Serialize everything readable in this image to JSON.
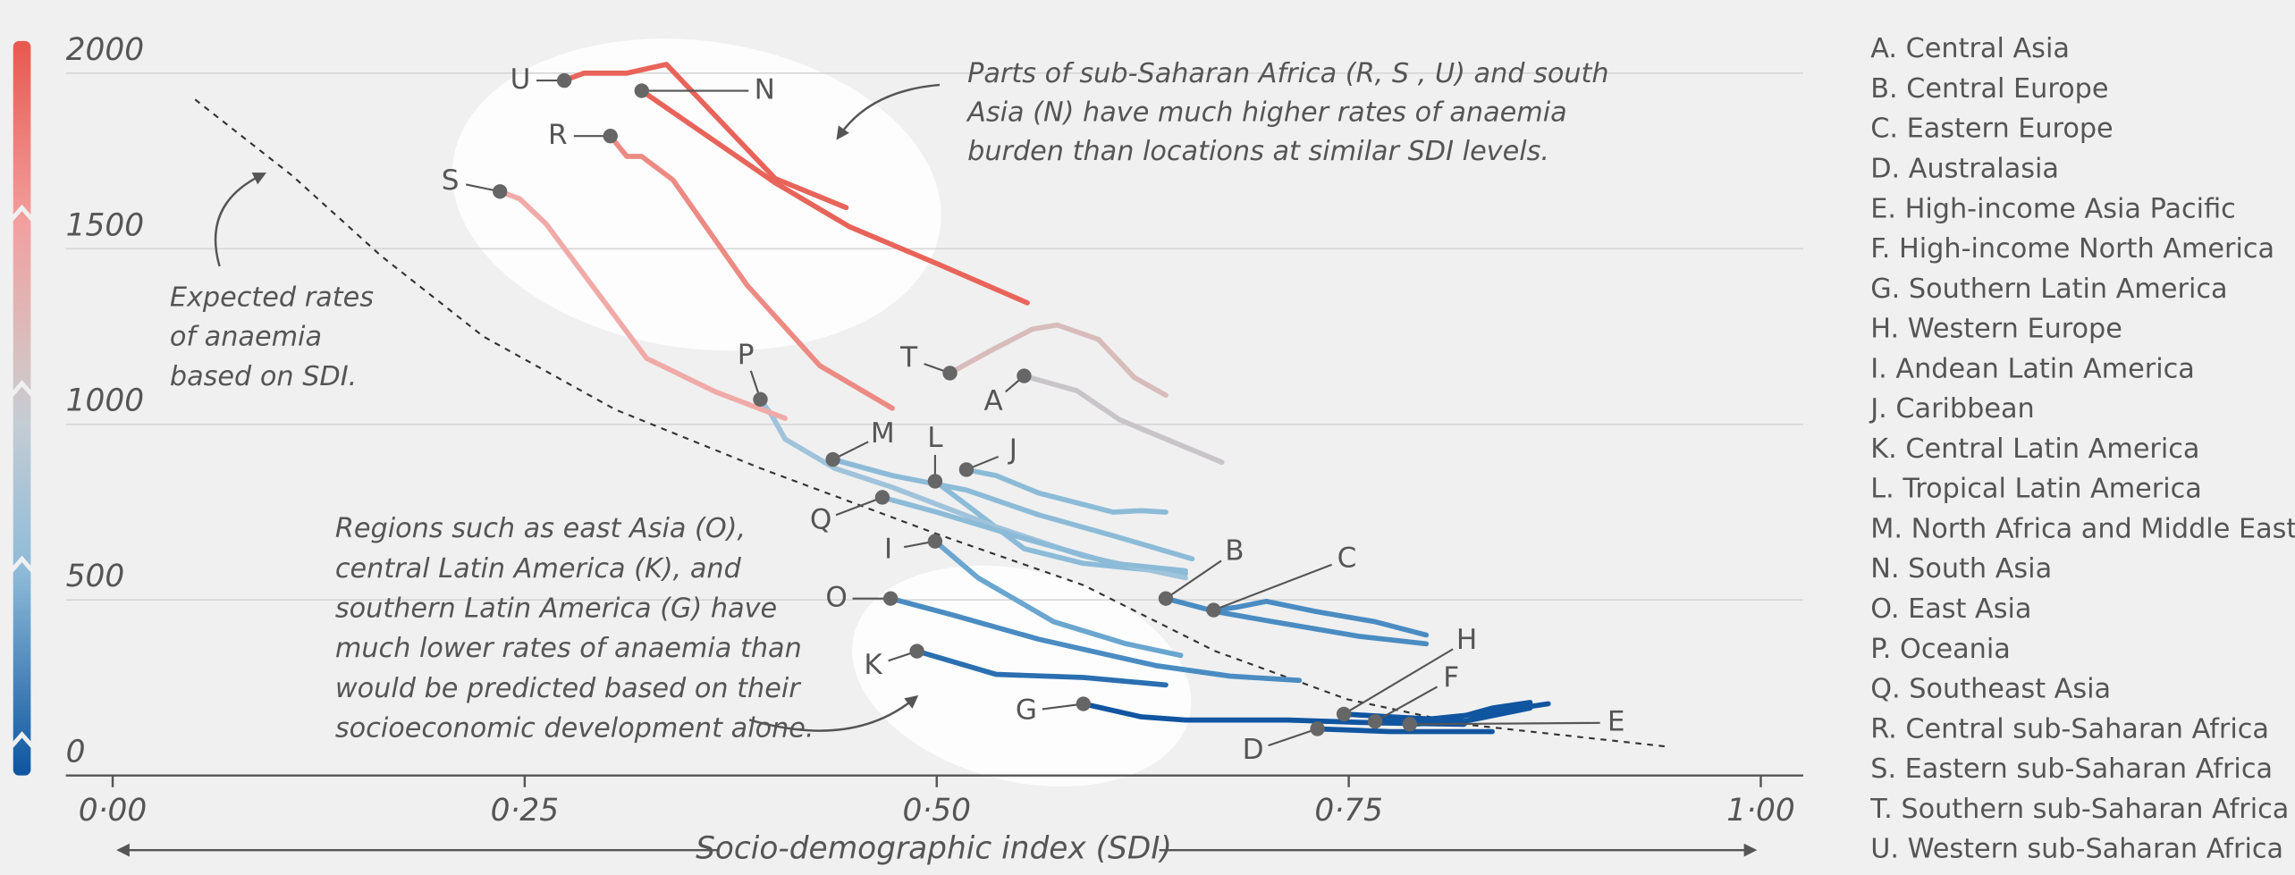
{
  "chart_data": {
    "type": "line",
    "x_label": "Socio-demographic index (SDI)",
    "xlim": [
      -0.03,
      1.03
    ],
    "ylim": [
      0,
      2000
    ],
    "xticks": [
      {
        "value": 0,
        "label": "0·00"
      },
      {
        "value": 0.25,
        "label": "0·25"
      },
      {
        "value": 0.5,
        "label": "0·50"
      },
      {
        "value": 0.75,
        "label": "0·75"
      },
      {
        "value": 1,
        "label": "1·00"
      }
    ],
    "yticks": [
      0,
      500,
      1000,
      1500,
      2000
    ],
    "grid": true,
    "expected": {
      "label": [
        "Expected rates",
        "of anaemia",
        "based on SDI."
      ],
      "x": [
        0.05,
        0.109,
        0.163,
        0.225,
        0.305,
        0.393,
        0.5,
        0.589,
        0.669,
        0.749,
        0.82,
        0.942
      ],
      "values": [
        1925,
        1708,
        1479,
        1250,
        1042,
        875,
        688,
        542,
        354,
        217,
        146,
        83
      ]
    },
    "annotations": [
      {
        "lines": [
          "Parts of sub-Saharan Africa (R, S , U) and south",
          "Asia (N) have much higher rates of anaemia",
          "burden than locations at similar SDI levels."
        ]
      },
      {
        "lines": [
          "Regions such as east Asia (O),",
          "central Latin America (K), and",
          "southern Latin America (G) have",
          "much lower rates of anaemia than",
          "would be predicted based on their",
          "socioeconomic development alone."
        ]
      }
    ],
    "series": [
      {
        "letter": "A",
        "name": "A.  Central Asia",
        "color": "#c9c4c8",
        "x": [
          0.553,
          0.585,
          0.611,
          0.673
        ],
        "values": [
          1138,
          1096,
          1013,
          892
        ]
      },
      {
        "letter": "B",
        "name": "B.  Central Europe",
        "color": "#4a8cc2",
        "x": [
          0.639,
          0.669,
          0.704,
          0.757,
          0.797
        ],
        "values": [
          504,
          467,
          438,
          396,
          375
        ]
      },
      {
        "letter": "C",
        "name": "C.  Eastern Europe",
        "color": "#4a8cc2",
        "x": [
          0.668,
          0.682,
          0.7,
          0.73,
          0.766,
          0.797
        ],
        "values": [
          471,
          479,
          496,
          467,
          438,
          400
        ]
      },
      {
        "letter": "D",
        "name": "D.  Australasia",
        "color": "#1055a0",
        "x": [
          0.731,
          0.775,
          0.837
        ],
        "values": [
          133,
          125,
          125
        ]
      },
      {
        "letter": "E",
        "name": "E.  High-income Asia Pacific",
        "color": "#1055a0",
        "x": [
          0.787,
          0.82,
          0.86
        ],
        "values": [
          146,
          154,
          192
        ]
      },
      {
        "letter": "F",
        "name": "F.  High-income North America",
        "color": "#1055a0",
        "x": [
          0.766,
          0.793,
          0.829,
          0.871
        ],
        "values": [
          154,
          158,
          175,
          204
        ]
      },
      {
        "letter": "G",
        "name": "G.  Southern Latin America",
        "color": "#1055a0",
        "x": [
          0.589,
          0.624,
          0.651,
          0.713,
          0.766,
          0.82
        ],
        "values": [
          204,
          167,
          158,
          158,
          150,
          146
        ]
      },
      {
        "letter": "H",
        "name": "H.  Western Europe",
        "color": "#1055a0",
        "x": [
          0.747,
          0.775,
          0.811,
          0.837,
          0.86
        ],
        "values": [
          175,
          167,
          158,
          192,
          208
        ]
      },
      {
        "letter": "I",
        "name": "I.   Andean Latin America",
        "color": "#6aa6cf",
        "x": [
          0.499,
          0.525,
          0.571,
          0.615,
          0.648
        ],
        "values": [
          667,
          563,
          438,
          375,
          342
        ]
      },
      {
        "letter": "J",
        "name": "J.   Caribbean",
        "color": "#8cbbd8",
        "x": [
          0.518,
          0.536,
          0.562,
          0.607,
          0.624,
          0.639
        ],
        "values": [
          871,
          854,
          804,
          750,
          754,
          750
        ]
      },
      {
        "letter": "K",
        "name": "K.  Central Latin America",
        "color": "#2a6fb0",
        "x": [
          0.488,
          0.536,
          0.589,
          0.639
        ],
        "values": [
          354,
          288,
          279,
          258
        ]
      },
      {
        "letter": "L",
        "name": "L.  Tropical Latin America",
        "color": "#8cbbd8",
        "x": [
          0.499,
          0.518,
          0.553,
          0.589,
          0.651
        ],
        "values": [
          838,
          771,
          646,
          604,
          575
        ]
      },
      {
        "letter": "M",
        "name": "M. North Africa and Middle East",
        "color": "#8cbbd8",
        "x": [
          0.437,
          0.473,
          0.518,
          0.562,
          0.607,
          0.655
        ],
        "values": [
          900,
          854,
          813,
          742,
          683,
          617
        ]
      },
      {
        "letter": "N",
        "name": "N.  South Asia",
        "color": "#e8645a",
        "x": [
          0.321,
          0.402,
          0.447,
          0.5,
          0.555
        ],
        "values": [
          1950,
          1688,
          1563,
          1458,
          1346
        ]
      },
      {
        "letter": "O",
        "name": "O.  East Asia",
        "color": "#4a8cc2",
        "x": [
          0.472,
          0.509,
          0.562,
          0.633,
          0.678,
          0.72
        ],
        "values": [
          504,
          458,
          388,
          313,
          283,
          271
        ]
      },
      {
        "letter": "P",
        "name": "P.  Oceania",
        "color": "#9fc3da",
        "x": [
          0.393,
          0.4,
          0.408,
          0.438,
          0.473,
          0.536,
          0.589,
          0.651
        ],
        "values": [
          1071,
          1025,
          958,
          875,
          821,
          708,
          625,
          563
        ]
      },
      {
        "letter": "Q",
        "name": "Q.  Southeast Asia",
        "color": "#8cbbd8",
        "x": [
          0.467,
          0.5,
          0.553,
          0.607,
          0.651
        ],
        "values": [
          792,
          750,
          675,
          604,
          583
        ]
      },
      {
        "letter": "R",
        "name": "R.  Central sub-Saharan Africa",
        "color": "#ec8a84",
        "x": [
          0.302,
          0.312,
          0.321,
          0.34,
          0.385,
          0.429,
          0.473
        ],
        "values": [
          1821,
          1763,
          1763,
          1696,
          1396,
          1167,
          1046
        ]
      },
      {
        "letter": "S",
        "name": "S.  Eastern sub-Saharan Africa",
        "color": "#f0aaa8",
        "x": [
          0.235,
          0.247,
          0.263,
          0.324,
          0.366,
          0.408
        ],
        "values": [
          1663,
          1642,
          1571,
          1188,
          1092,
          1017
        ]
      },
      {
        "letter": "T",
        "name": "T.  Southern sub-Saharan Africa",
        "color": "#d8bcbc",
        "x": [
          0.508,
          0.532,
          0.558,
          0.573,
          0.598,
          0.62,
          0.639
        ],
        "values": [
          1146,
          1208,
          1271,
          1283,
          1242,
          1133,
          1083
        ]
      },
      {
        "letter": "U",
        "name": "U.  Western sub-Saharan Africa",
        "color": "#e8645a",
        "x": [
          0.274,
          0.286,
          0.312,
          0.336,
          0.402,
          0.445
        ],
        "values": [
          1979,
          2000,
          2000,
          2025,
          1700,
          1617
        ]
      }
    ]
  }
}
